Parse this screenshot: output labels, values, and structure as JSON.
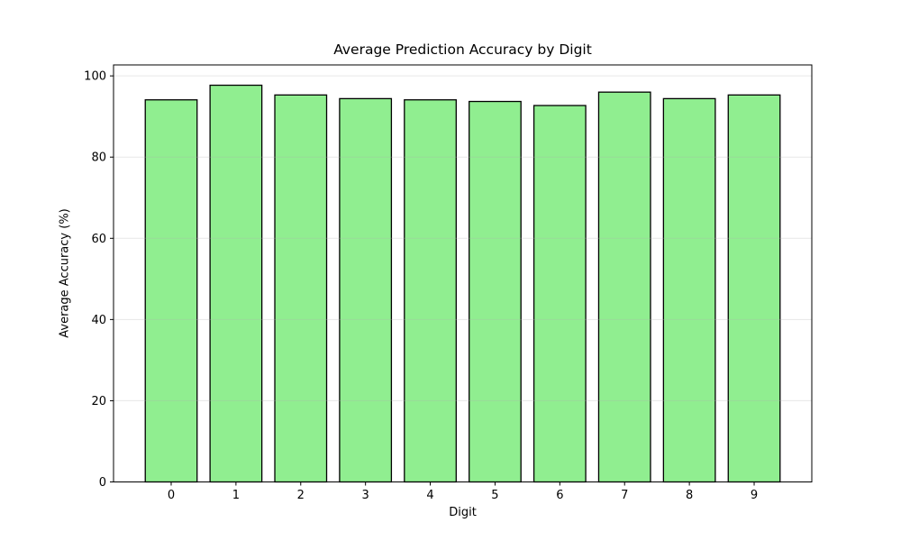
{
  "figure": {
    "background": "#ffffff"
  },
  "chart_data": {
    "type": "bar",
    "title": "Average Prediction Accuracy by Digit",
    "xlabel": "Digit",
    "ylabel": "Average Accuracy (%)",
    "categories": [
      "0",
      "1",
      "2",
      "3",
      "4",
      "5",
      "6",
      "7",
      "8",
      "9"
    ],
    "values": [
      94.1,
      97.7,
      95.3,
      94.4,
      94.1,
      93.7,
      92.7,
      96.0,
      94.4,
      95.3
    ],
    "yticks": [
      0,
      20,
      40,
      60,
      80,
      100
    ],
    "ylim": [
      0,
      102.7
    ],
    "bar_width_units": 0.8,
    "xlim": [
      -0.89,
      9.89
    ],
    "grid": "horizontal",
    "legend": "none",
    "bar_color": "#90EE90",
    "bar_edge_color": "#000000",
    "spine_color": "#000000",
    "grid_color": "#b0b0b0",
    "grid_alpha": 0.3,
    "tick_label_color": "#000000"
  }
}
